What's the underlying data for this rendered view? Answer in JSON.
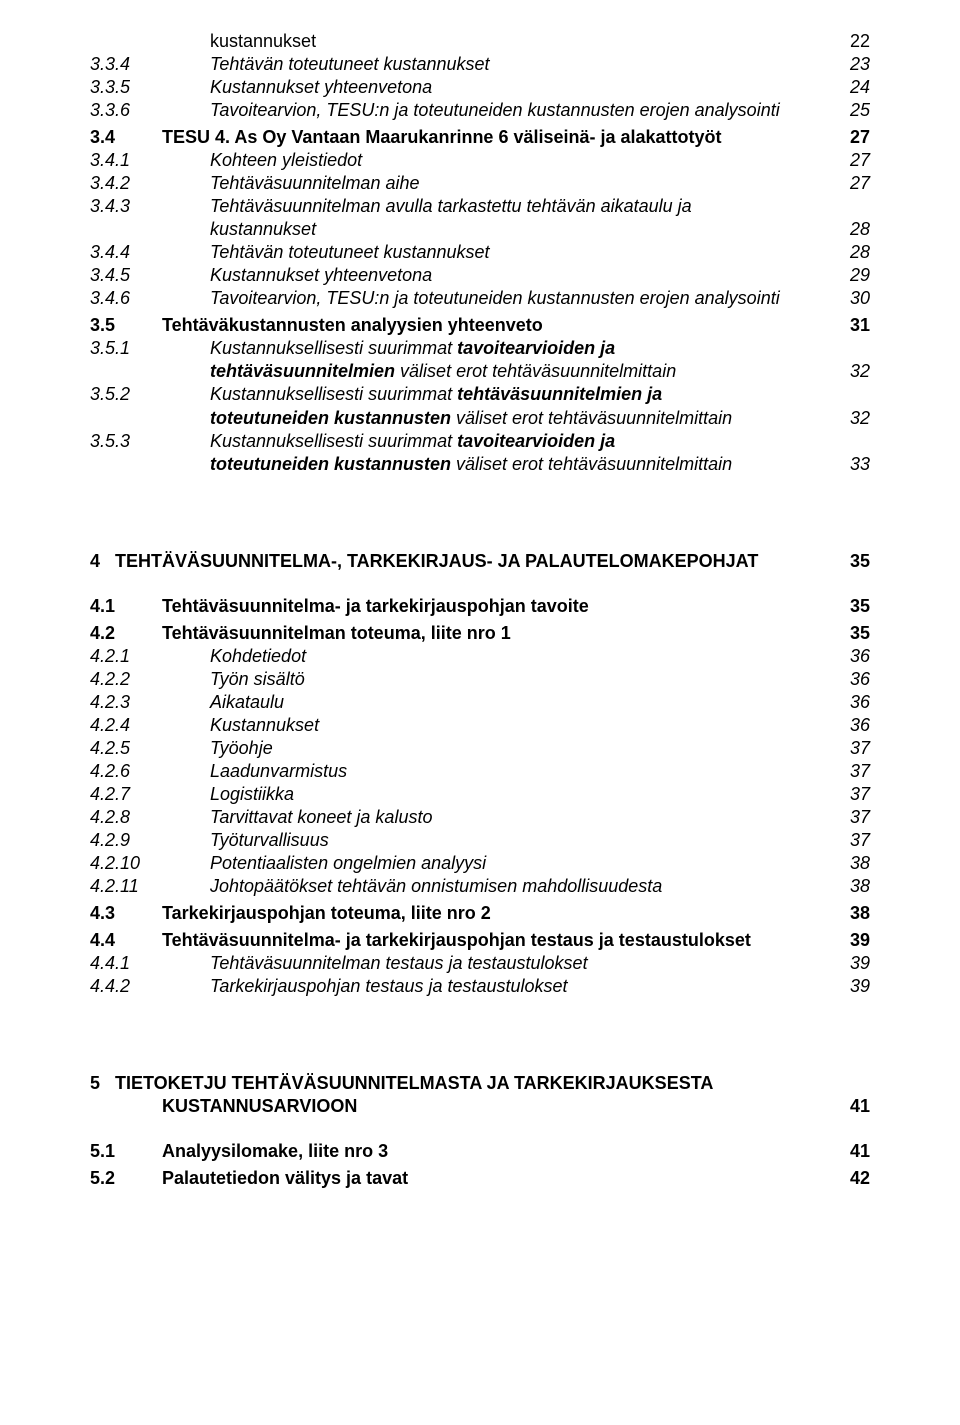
{
  "rows": [
    {
      "t": "row",
      "cls": "indent0",
      "num": "",
      "label": "kustannukset",
      "pg": "22",
      "style": ""
    },
    {
      "t": "row",
      "cls": "indentA italic",
      "num": "3.3.4",
      "label": "Tehtävän toteutuneet kustannukset",
      "pg": "23",
      "style": "italic"
    },
    {
      "t": "row",
      "cls": "indentA italic",
      "num": "3.3.5",
      "label": "Kustannukset yhteenvetona",
      "pg": "24",
      "style": "italic"
    },
    {
      "t": "row",
      "cls": "indentA italic",
      "num": "3.3.6",
      "label": "Tavoitearvion, TESU:n ja toteutuneiden kustannusten erojen analysointi",
      "pg": "25",
      "style": "italic"
    },
    {
      "t": "sp",
      "cls": "sp-small"
    },
    {
      "t": "row",
      "cls": "indentB bold",
      "num": "3.4",
      "label": "TESU 4. As Oy Vantaan Maarukanrinne 6 väliseinä- ja alakattotyöt",
      "pg": "27",
      "style": "bold"
    },
    {
      "t": "row",
      "cls": "indentA italic",
      "num": "3.4.1",
      "label": "Kohteen yleistiedot",
      "pg": "27",
      "style": "italic"
    },
    {
      "t": "row",
      "cls": "indentA italic",
      "num": "3.4.2",
      "label": "Tehtäväsuunnitelman aihe",
      "pg": "27",
      "style": "italic"
    },
    {
      "t": "row",
      "cls": "indentA italic",
      "num": "3.4.3",
      "label": "Tehtäväsuunnitelman avulla tarkastettu tehtävän aikataulu ja",
      "pg": "",
      "style": "italic"
    },
    {
      "t": "row",
      "cls": "indentMulti italic",
      "num": "",
      "label": "kustannukset",
      "pg": "28",
      "style": "italic"
    },
    {
      "t": "row",
      "cls": "indentA italic",
      "num": "3.4.4",
      "label": "Tehtävän toteutuneet kustannukset",
      "pg": "28",
      "style": "italic"
    },
    {
      "t": "row",
      "cls": "indentA italic",
      "num": "3.4.5",
      "label": "Kustannukset yhteenvetona",
      "pg": "29",
      "style": "italic"
    },
    {
      "t": "row",
      "cls": "indentA italic",
      "num": "3.4.6",
      "label": "Tavoitearvion, TESU:n ja toteutuneiden kustannusten erojen analysointi",
      "pg": "30",
      "style": "italic"
    },
    {
      "t": "sp",
      "cls": "sp-small"
    },
    {
      "t": "row",
      "cls": "indentB bold",
      "num": "3.5",
      "label": "Tehtäväkustannusten analyysien yhteenveto",
      "pg": "31",
      "style": "bold"
    },
    {
      "t": "mixed",
      "cls": "indentA italic",
      "num": "3.5.1",
      "segments": [
        {
          "text": "Kustannuksellisesti suurimmat ",
          "b": false
        },
        {
          "text": "tavoitearvioiden ja",
          "b": true
        }
      ],
      "pg": ""
    },
    {
      "t": "mixed",
      "cls": "indentMulti italic",
      "num": "",
      "segments": [
        {
          "text": "tehtäväsuunnitelmien",
          "b": true
        },
        {
          "text": " väliset erot tehtäväsuunnitelmittain",
          "b": false
        }
      ],
      "pg": "32"
    },
    {
      "t": "mixed",
      "cls": "indentA italic",
      "num": "3.5.2",
      "segments": [
        {
          "text": "Kustannuksellisesti suurimmat ",
          "b": false
        },
        {
          "text": "tehtäväsuunnitelmien ja",
          "b": true
        }
      ],
      "pg": ""
    },
    {
      "t": "mixed",
      "cls": "indentMulti italic",
      "num": "",
      "segments": [
        {
          "text": "toteutuneiden kustannusten",
          "b": true
        },
        {
          "text": " väliset erot tehtäväsuunnitelmittain",
          "b": false
        }
      ],
      "pg": "32"
    },
    {
      "t": "mixed",
      "cls": "indentA italic",
      "num": "3.5.3",
      "segments": [
        {
          "text": "Kustannuksellisesti suurimmat ",
          "b": false
        },
        {
          "text": "tavoitearvioiden ja",
          "b": true
        }
      ],
      "pg": ""
    },
    {
      "t": "mixed",
      "cls": "indentMulti italic",
      "num": "",
      "segments": [
        {
          "text": "toteutuneiden kustannusten",
          "b": true
        },
        {
          "text": " väliset erot tehtäväsuunnitelmittain",
          "b": false
        }
      ],
      "pg": "33"
    },
    {
      "t": "sp",
      "cls": "sp-huge"
    },
    {
      "t": "row",
      "cls": "indentC bold",
      "num": "4",
      "label": "TEHTÄVÄSUUNNITELMA-, TARKEKIRJAUS- JA PALAUTELOMAKEPOHJAT",
      "pg": "35",
      "style": "bold"
    },
    {
      "t": "sp",
      "cls": "sp-med"
    },
    {
      "t": "row",
      "cls": "indentB bold",
      "num": "4.1",
      "label": "Tehtäväsuunnitelma- ja tarkekirjauspohjan tavoite",
      "pg": "35",
      "style": "bold"
    },
    {
      "t": "sp",
      "cls": "sp-small"
    },
    {
      "t": "row",
      "cls": "indentB bold",
      "num": "4.2",
      "label": "Tehtäväsuunnitelman toteuma, liite nro 1",
      "pg": "35",
      "style": "bold"
    },
    {
      "t": "row",
      "cls": "indentA italic",
      "num": "4.2.1",
      "label": "Kohdetiedot",
      "pg": "36",
      "style": "italic"
    },
    {
      "t": "row",
      "cls": "indentA italic",
      "num": "4.2.2",
      "label": "Työn sisältö",
      "pg": "36",
      "style": "italic"
    },
    {
      "t": "row",
      "cls": "indentA italic",
      "num": "4.2.3",
      "label": "Aikataulu",
      "pg": "36",
      "style": "italic"
    },
    {
      "t": "row",
      "cls": "indentA italic",
      "num": "4.2.4",
      "label": "Kustannukset",
      "pg": "36",
      "style": "italic"
    },
    {
      "t": "row",
      "cls": "indentA italic",
      "num": "4.2.5",
      "label": "Työohje",
      "pg": "37",
      "style": "italic"
    },
    {
      "t": "row",
      "cls": "indentA italic",
      "num": "4.2.6",
      "label": "Laadunvarmistus",
      "pg": "37",
      "style": "italic"
    },
    {
      "t": "row",
      "cls": "indentA italic",
      "num": "4.2.7",
      "label": "Logistiikka",
      "pg": "37",
      "style": "italic"
    },
    {
      "t": "row",
      "cls": "indentA italic",
      "num": "4.2.8",
      "label": "Tarvittavat koneet ja kalusto",
      "pg": "37",
      "style": "italic"
    },
    {
      "t": "row",
      "cls": "indentA italic",
      "num": "4.2.9",
      "label": "Työturvallisuus",
      "pg": "37",
      "style": "italic"
    },
    {
      "t": "row",
      "cls": "indentA italic",
      "num": "4.2.10",
      "label": "Potentiaalisten ongelmien analyysi",
      "pg": "38",
      "style": "italic"
    },
    {
      "t": "row",
      "cls": "indentA italic",
      "num": "4.2.11",
      "label": "Johtopäätökset tehtävän onnistumisen mahdollisuudesta",
      "pg": "38",
      "style": "italic"
    },
    {
      "t": "sp",
      "cls": "sp-small"
    },
    {
      "t": "row",
      "cls": "indentB bold",
      "num": "4.3",
      "label": "Tarkekirjauspohjan toteuma, liite nro 2",
      "pg": "38",
      "style": "bold"
    },
    {
      "t": "sp",
      "cls": "sp-small"
    },
    {
      "t": "row",
      "cls": "indentB bold",
      "num": "4.4",
      "label": "Tehtäväsuunnitelma- ja tarkekirjauspohjan testaus ja testaustulokset",
      "pg": "39",
      "style": "bold"
    },
    {
      "t": "row",
      "cls": "indentA italic",
      "num": "4.4.1",
      "label": "Tehtäväsuunnitelman testaus ja testaustulokset",
      "pg": "39",
      "style": "italic"
    },
    {
      "t": "row",
      "cls": "indentA italic",
      "num": "4.4.2",
      "label": "Tarkekirjauspohjan testaus ja testaustulokset",
      "pg": "39",
      "style": "italic"
    },
    {
      "t": "sp",
      "cls": "sp-huge"
    },
    {
      "t": "row",
      "cls": "indentC bold",
      "num": "5",
      "label": "TIETOKETJU TEHTÄVÄSUUNNITELMASTA JA TARKEKIRJAUKSESTA",
      "pg": "",
      "style": "bold"
    },
    {
      "t": "row",
      "cls": "bold",
      "num": "",
      "label": "KUSTANNUSARVIOON",
      "pg": "41",
      "style": "bold",
      "labelPad": "72"
    },
    {
      "t": "sp",
      "cls": "sp-med"
    },
    {
      "t": "row",
      "cls": "indentB bold",
      "num": "5.1",
      "label": "Analyysilomake, liite nro 3",
      "pg": "41",
      "style": "bold"
    },
    {
      "t": "sp",
      "cls": "sp-small"
    },
    {
      "t": "row",
      "cls": "indentB bold",
      "num": "5.2",
      "label": "Palautetiedon välitys ja tavat",
      "pg": "42",
      "style": "bold"
    }
  ]
}
